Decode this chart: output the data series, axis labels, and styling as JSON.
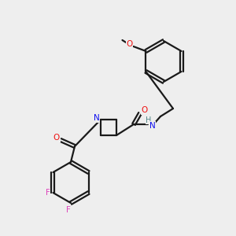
{
  "background_color": "#eeeeee",
  "bond_color": "#1a1a1a",
  "atom_colors": {
    "N": "#1010ee",
    "O": "#ee1010",
    "F": "#dd44bb",
    "C": "#1a1a1a",
    "H": "#558888"
  },
  "figsize": [
    3.0,
    3.0
  ],
  "dpi": 100
}
